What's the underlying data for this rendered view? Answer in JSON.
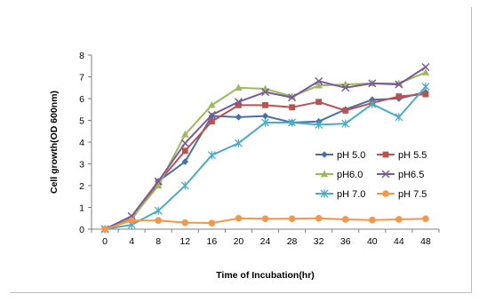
{
  "chart_data": {
    "type": "line",
    "xlabel": "Time of Incubation(hr)",
    "ylabel": "Cell growth(OD 600nm)",
    "x": [
      0,
      4,
      8,
      12,
      16,
      20,
      24,
      28,
      32,
      36,
      40,
      44,
      48
    ],
    "ylim": [
      0,
      8
    ],
    "yticks": [
      0,
      1,
      2,
      3,
      4,
      5,
      6,
      7,
      8
    ],
    "grid": false,
    "legend_position": "right",
    "series": [
      {
        "name": "pH 5.0",
        "color": "#4472a8",
        "marker": "diamond",
        "values": [
          0,
          0.5,
          2.2,
          3.1,
          5.2,
          5.15,
          5.2,
          4.9,
          4.95,
          5.5,
          5.95,
          6.0,
          6.3
        ]
      },
      {
        "name": "pH 5.5",
        "color": "#c0504d",
        "marker": "square",
        "values": [
          0,
          0.45,
          2.15,
          3.6,
          4.95,
          5.7,
          5.7,
          5.6,
          5.85,
          5.45,
          5.8,
          6.1,
          6.2
        ]
      },
      {
        "name": "pH6.0",
        "color": "#9bbb59",
        "marker": "triangle",
        "values": [
          0,
          0.5,
          2.0,
          4.35,
          5.7,
          6.5,
          6.45,
          6.1,
          6.6,
          6.65,
          6.7,
          6.7,
          7.2
        ]
      },
      {
        "name": "pH6.5",
        "color": "#7b5a9c",
        "marker": "x",
        "values": [
          0,
          0.6,
          2.2,
          3.95,
          5.25,
          5.85,
          6.3,
          6.05,
          6.8,
          6.5,
          6.7,
          6.65,
          7.45
        ]
      },
      {
        "name": "pH 7.0",
        "color": "#4bacc6",
        "marker": "star",
        "values": [
          0,
          0.2,
          0.85,
          2.0,
          3.4,
          3.95,
          4.9,
          4.9,
          4.8,
          4.85,
          5.75,
          5.15,
          6.55
        ]
      },
      {
        "name": "pH 7.5",
        "color": "#f79646",
        "marker": "circle",
        "values": [
          0,
          0.4,
          0.4,
          0.3,
          0.28,
          0.5,
          0.48,
          0.48,
          0.5,
          0.45,
          0.42,
          0.45,
          0.48
        ]
      }
    ]
  }
}
